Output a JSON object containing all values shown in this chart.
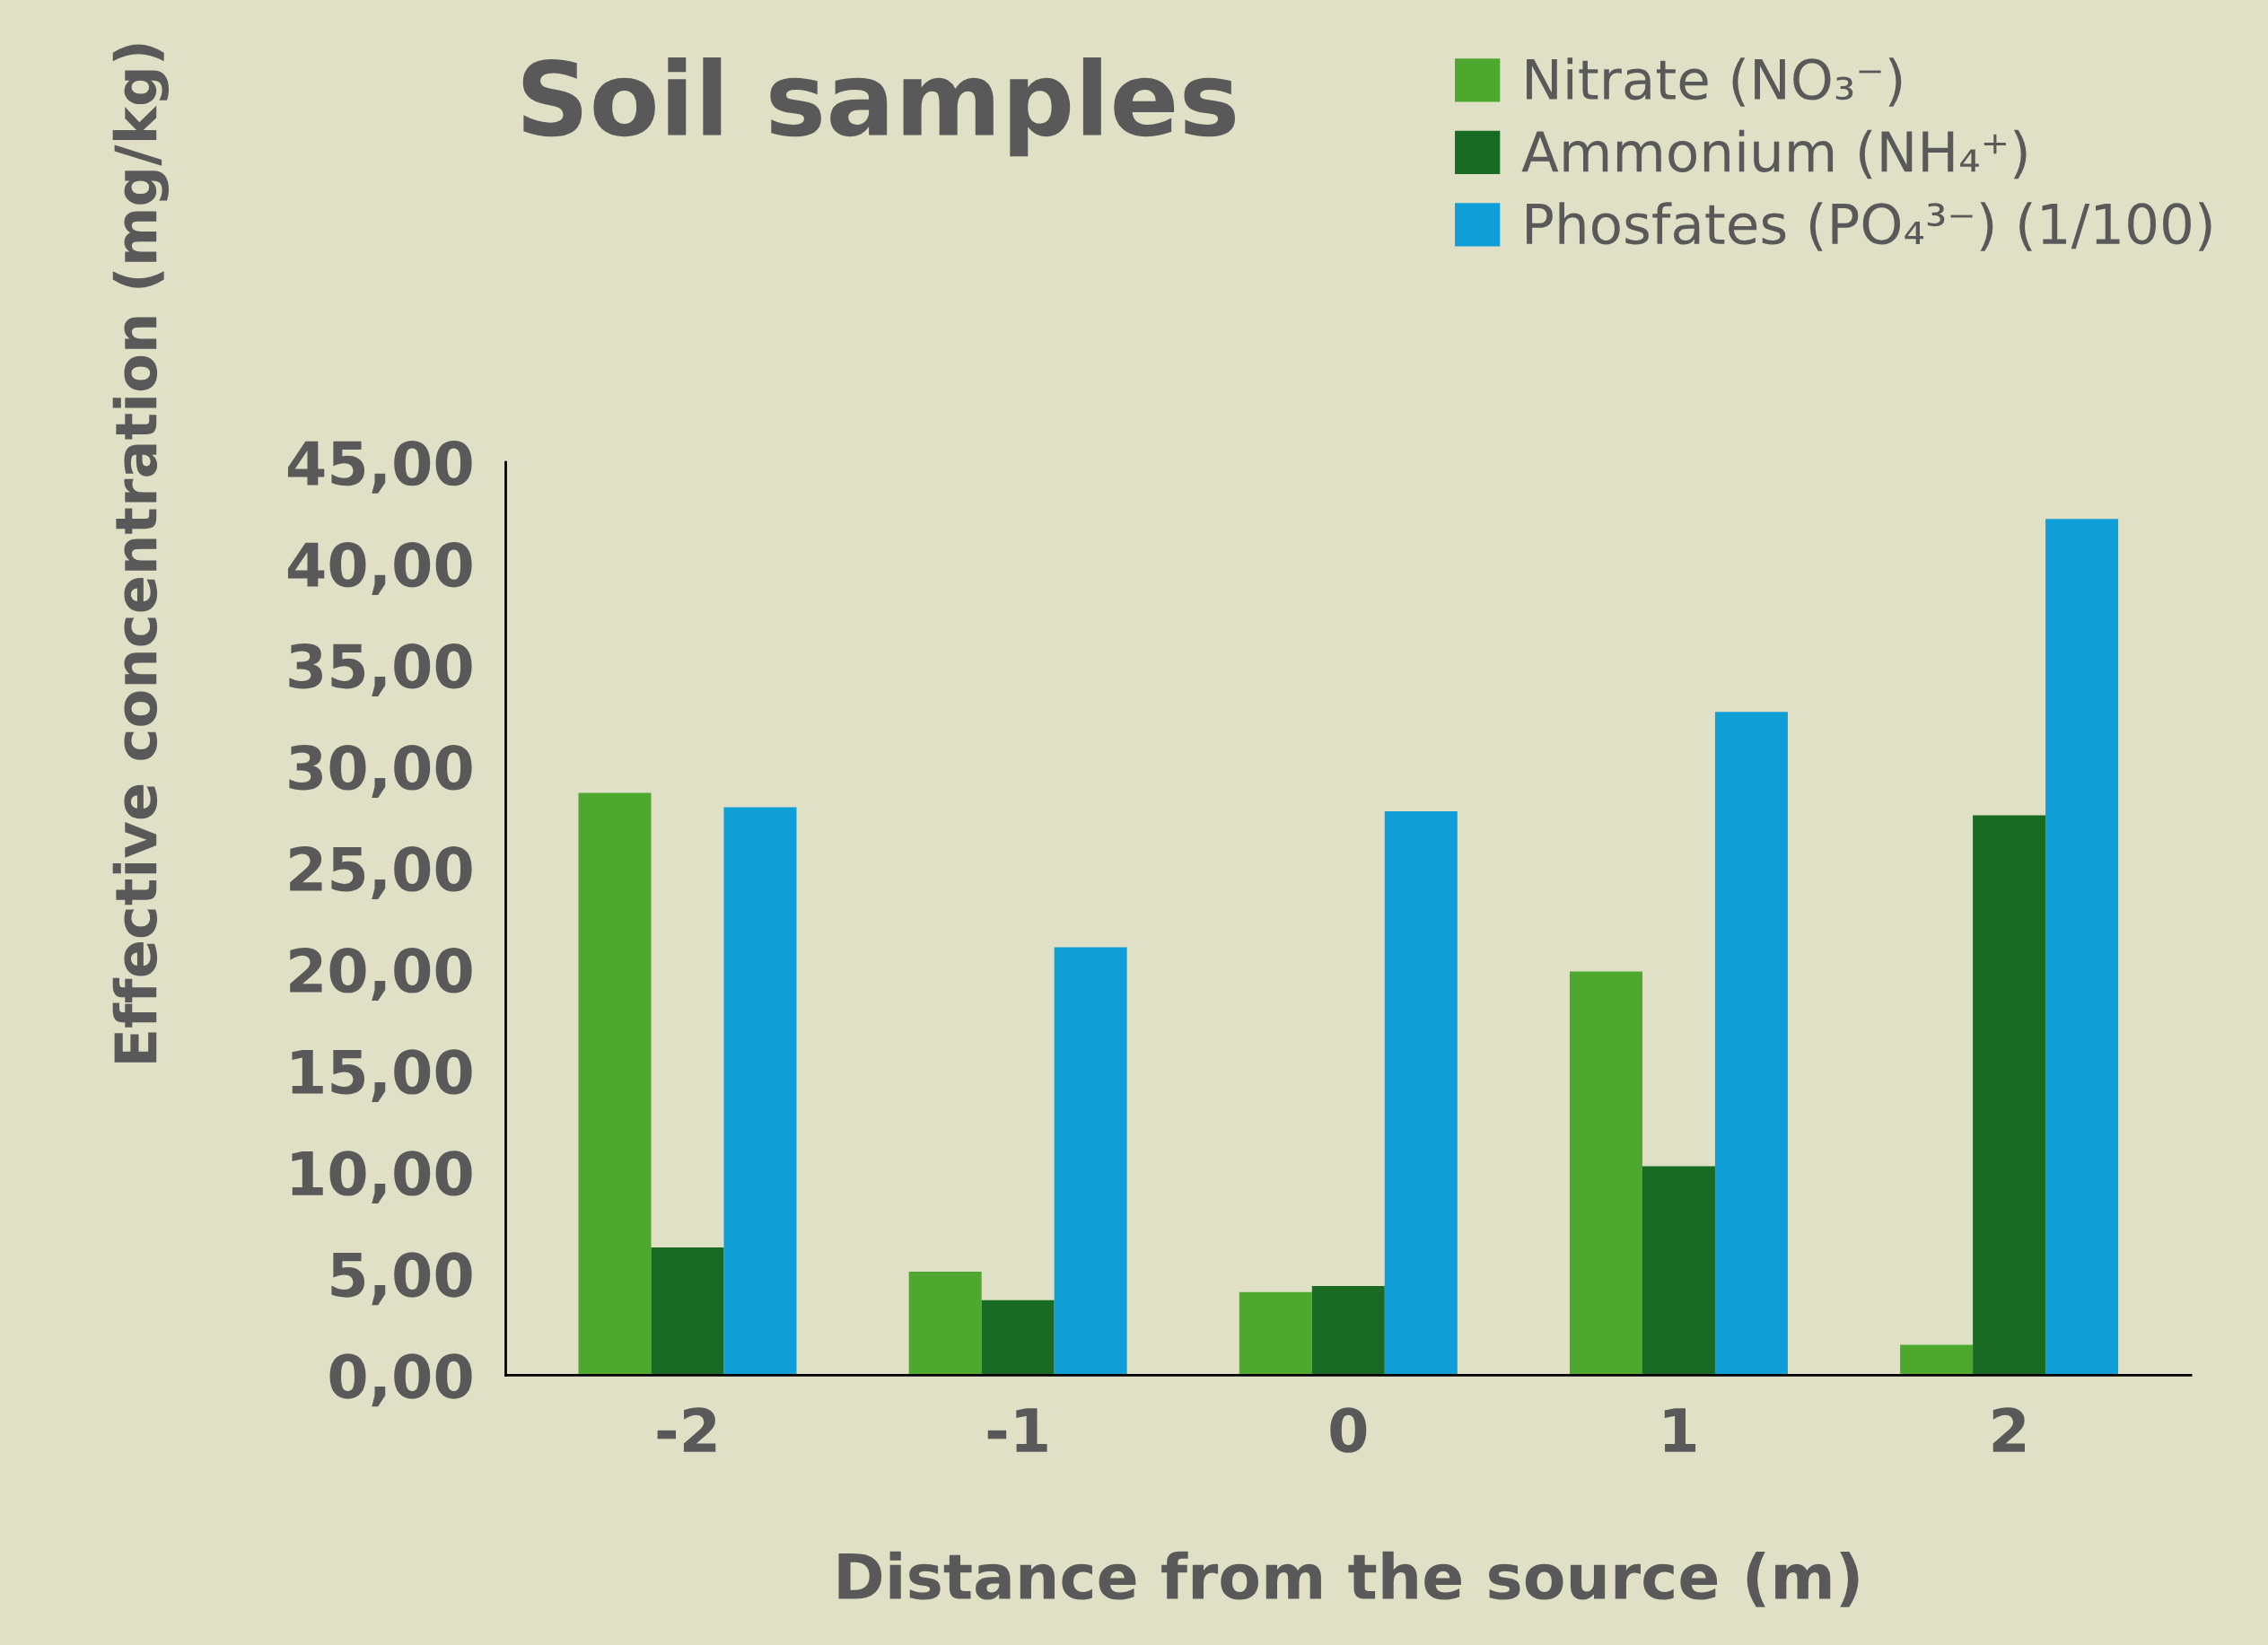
{
  "chart_data": {
    "type": "bar",
    "title": "Soil samples",
    "xlabel": "Distance from the source (m)",
    "ylabel": "Effective concentration (mg/kg)",
    "categories": [
      "-2",
      "-1",
      "0",
      "1",
      "2"
    ],
    "series": [
      {
        "name": "Nitrate (NO₃⁻)",
        "color": "#4ea72e",
        "values": [
          28.7,
          5.1,
          4.1,
          19.9,
          1.5
        ]
      },
      {
        "name": "Ammonium (NH₄⁺)",
        "color": "#196b24",
        "values": [
          6.3,
          3.7,
          4.4,
          10.3,
          27.6
        ]
      },
      {
        "name": "Phosfates (PO₄³⁻) (1/100)",
        "color": "#0f9ed5",
        "values": [
          28.0,
          21.1,
          27.8,
          32.7,
          42.2
        ]
      }
    ],
    "ylim": [
      0,
      45
    ],
    "yticks": [
      {
        "value": 0,
        "label": "0,00"
      },
      {
        "value": 5,
        "label": "5,00"
      },
      {
        "value": 10,
        "label": "10,00"
      },
      {
        "value": 15,
        "label": "15,00"
      },
      {
        "value": 20,
        "label": "20,00"
      },
      {
        "value": 25,
        "label": "25,00"
      },
      {
        "value": 30,
        "label": "30,00"
      },
      {
        "value": 35,
        "label": "35,00"
      },
      {
        "value": 40,
        "label": "40,00"
      },
      {
        "value": 45,
        "label": "45,00"
      }
    ],
    "grid": false,
    "legend": "top right"
  }
}
